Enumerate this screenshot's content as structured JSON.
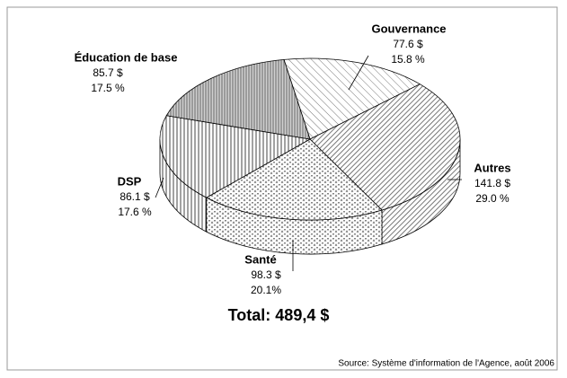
{
  "chart_data": {
    "type": "pie3d",
    "categories": [
      "Gouvernance",
      "Autres",
      "Santé",
      "DSP",
      "Éducation de base"
    ],
    "values": [
      77.6,
      141.8,
      98.3,
      86.1,
      85.7
    ],
    "value_labels": [
      "77.6 $",
      "141.8 $",
      "98.3 $",
      "86.1 $",
      "85.7 $"
    ],
    "percents": [
      15.8,
      29.0,
      20.1,
      17.6,
      17.5
    ],
    "percent_labels": [
      "15.8 %",
      "29.0 %",
      "20.1%",
      "17.6 %",
      "17.5 %"
    ],
    "total_label": "Total: 489,4 $",
    "source": "Source: Système d'information de l'Agence, août 2006"
  }
}
